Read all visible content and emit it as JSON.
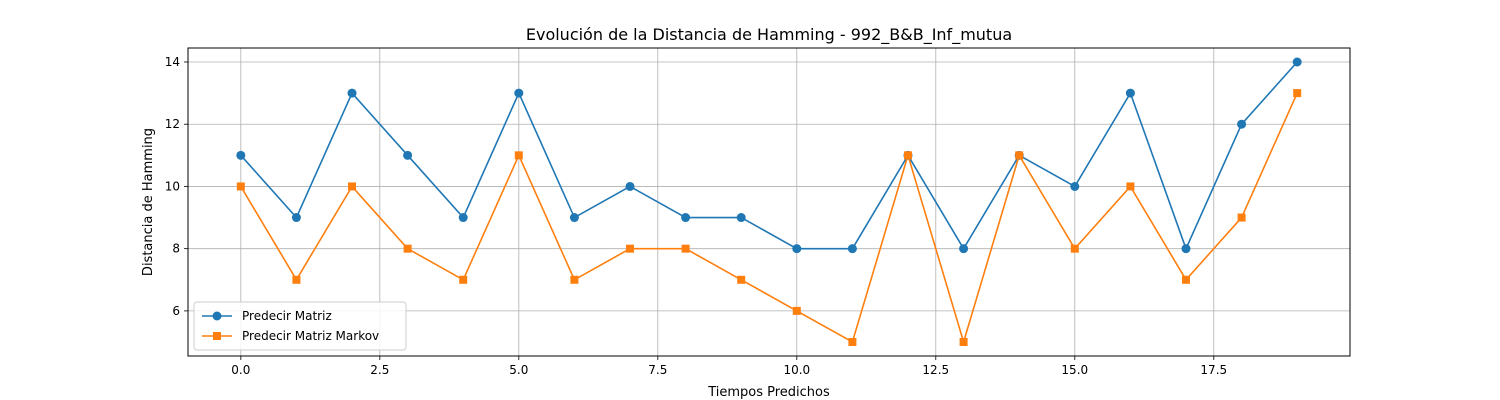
{
  "chart_data": {
    "type": "line",
    "title": "Evolución de la Distancia de Hamming - 992_B&B_Inf_mutua",
    "xlabel": "Tiempos Predichos",
    "ylabel": "Distancia de Hamming",
    "x": [
      0,
      1,
      2,
      3,
      4,
      5,
      6,
      7,
      8,
      9,
      10,
      11,
      12,
      13,
      14,
      15,
      16,
      17,
      18,
      19
    ],
    "xlim": [
      -0.95,
      19.95
    ],
    "ylim": [
      4.55,
      14.45
    ],
    "xticks": [
      0.0,
      2.5,
      5.0,
      7.5,
      10.0,
      12.5,
      15.0,
      17.5
    ],
    "xtick_labels": [
      "0.0",
      "2.5",
      "5.0",
      "7.5",
      "10.0",
      "12.5",
      "15.0",
      "17.5"
    ],
    "yticks": [
      6,
      8,
      10,
      12,
      14
    ],
    "ytick_labels": [
      "6",
      "8",
      "10",
      "12",
      "14"
    ],
    "grid": true,
    "legend_position": "bottom-left",
    "series": [
      {
        "name": "Predecir Matriz",
        "color": "#1f77b4",
        "marker": "circle",
        "values": [
          11,
          9,
          13,
          11,
          9,
          13,
          9,
          10,
          9,
          9,
          8,
          8,
          11,
          8,
          11,
          10,
          13,
          8,
          12,
          14
        ]
      },
      {
        "name": "Predecir Matriz Markov",
        "color": "#ff7f0e",
        "marker": "square",
        "values": [
          10,
          7,
          10,
          8,
          7,
          11,
          7,
          8,
          8,
          7,
          6,
          5,
          11,
          5,
          11,
          8,
          10,
          7,
          9,
          13
        ]
      }
    ]
  }
}
